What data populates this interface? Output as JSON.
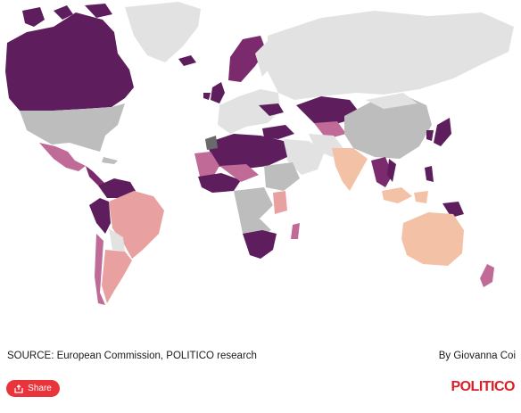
{
  "map": {
    "colors": {
      "darkest": "#5e1d5c",
      "dark": "#7b2a6e",
      "medium": "#c06b97",
      "light_pink": "#e8a1a0",
      "peach": "#f3c2a6",
      "no_data": "#bdbdbd",
      "background_land": "#e2e2e2",
      "water": "#ffffff"
    }
  },
  "footer": {
    "source": "SOURCE: European Commission, POLITICO research",
    "byline": "By Giovanna Coi"
  },
  "share": {
    "label": "Share",
    "icon": "share-icon"
  },
  "brand": {
    "logo_text": "POLITICO"
  }
}
